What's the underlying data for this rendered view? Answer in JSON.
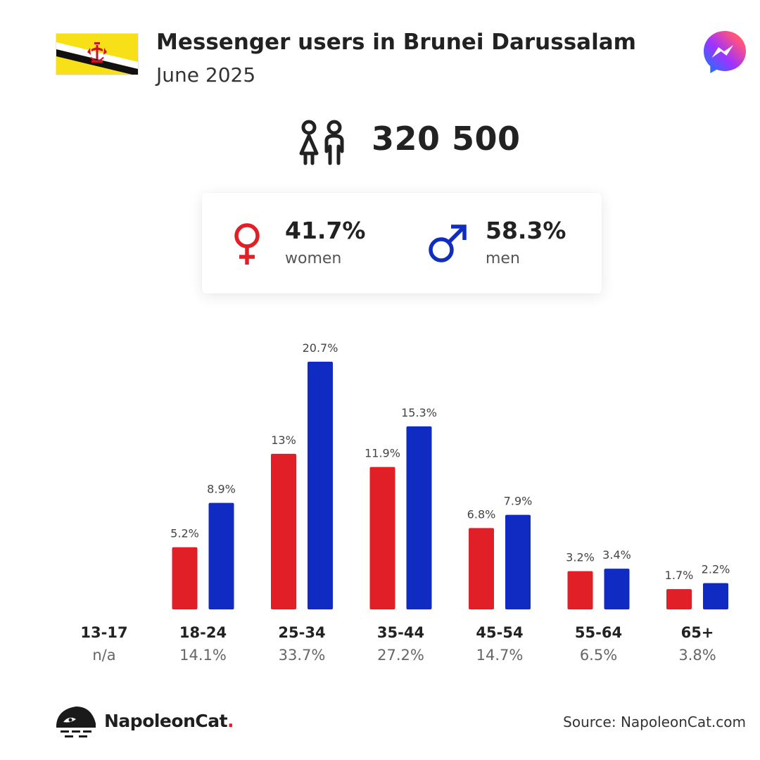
{
  "header": {
    "title": "Messenger users in Brunei Darussalam",
    "subtitle": "June 2025"
  },
  "summary": {
    "total_users": "320 500"
  },
  "gender": {
    "women": {
      "pct": "41.7%",
      "label": "women",
      "color": "#e01f26"
    },
    "men": {
      "pct": "58.3%",
      "label": "men",
      "color": "#0f2dbf"
    }
  },
  "colors": {
    "women_bar": "#e01f26",
    "men_bar": "#0f2bc2",
    "flag_yellow": "#f7e017",
    "flag_white": "#ffffff",
    "flag_black": "#000000",
    "flag_emblem": "#cf1126"
  },
  "icons": {
    "flag": "brunei-flag-icon",
    "app": "messenger-icon",
    "users": "users-icon",
    "women": "female-symbol-icon",
    "men": "male-symbol-icon",
    "brand": "napoleoncat-logo-icon"
  },
  "chart_data": {
    "type": "bar",
    "categories": [
      "13-17",
      "18-24",
      "25-34",
      "35-44",
      "45-54",
      "55-64",
      "65+"
    ],
    "category_totals": [
      "n/a",
      "14.1%",
      "33.7%",
      "27.2%",
      "14.7%",
      "6.5%",
      "3.8%"
    ],
    "series": [
      {
        "values": [
          null,
          5.2,
          13,
          11.9,
          6.8,
          3.2,
          1.7
        ],
        "labels": [
          "",
          "5.2%",
          "13%",
          "11.9%",
          "6.8%",
          "3.2%",
          "1.7%"
        ]
      },
      {
        "values": [
          null,
          8.9,
          20.7,
          15.3,
          7.9,
          3.4,
          2.2
        ],
        "labels": [
          "",
          "8.9%",
          "20.7%",
          "15.3%",
          "7.9%",
          "3.4%",
          "2.2%"
        ]
      }
    ],
    "ylim": [
      0,
      20.7
    ],
    "grid": false,
    "legend": "none"
  },
  "footer": {
    "brand_name": "NapoleonCat",
    "brand_dot": ".",
    "source": "Source: NapoleonCat.com"
  }
}
